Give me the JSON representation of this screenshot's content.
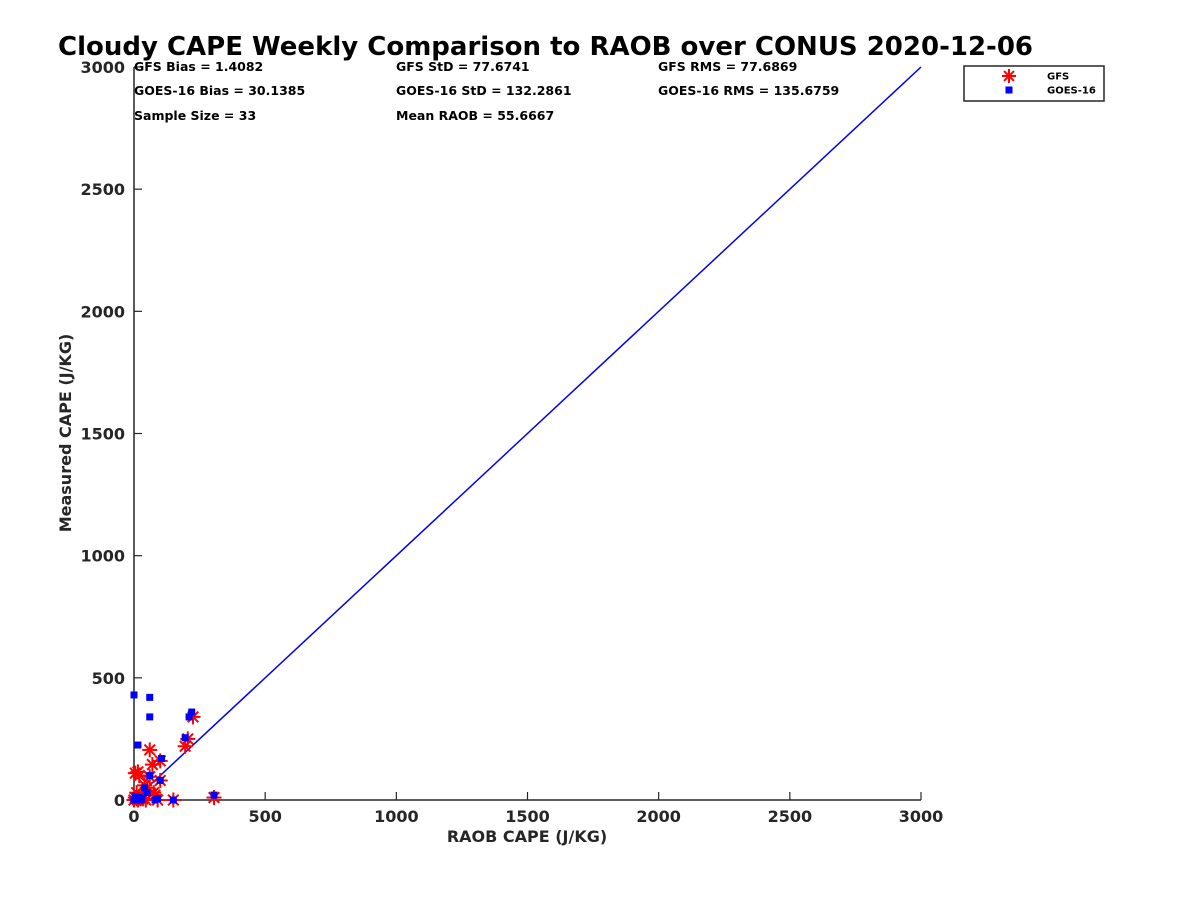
{
  "chart_data": {
    "type": "scatter",
    "title": "Cloudy CAPE Weekly Comparison to RAOB over CONUS 2020-12-06",
    "xlabel": "RAOB CAPE (J/KG)",
    "ylabel": "Measured CAPE (J/KG)",
    "xlim": [
      0,
      3000
    ],
    "ylim": [
      0,
      3000
    ],
    "xticks": [
      "0",
      "500",
      "1000",
      "1500",
      "2000",
      "2500",
      "3000"
    ],
    "yticks": [
      "0",
      "500",
      "1000",
      "1500",
      "2000",
      "2500",
      "3000"
    ],
    "grid": false,
    "legend_position": "top-right",
    "stats": [
      [
        "GFS Bias = 1.4082",
        "GFS StD = 77.6741",
        "GFS RMS = 77.6869"
      ],
      [
        "GOES-16 Bias = 30.1385",
        "GOES-16 StD = 132.2861",
        "GOES-16 RMS = 135.6759"
      ],
      [
        "Sample Size = 33",
        "Mean RAOB = 55.6667",
        ""
      ]
    ],
    "reference_line": {
      "x": [
        0,
        3000
      ],
      "y": [
        0,
        3000
      ],
      "color": "#0000ee"
    },
    "series": [
      {
        "name": "GFS",
        "marker": "star",
        "color": "#ff0000",
        "points": [
          [
            0,
            0
          ],
          [
            5,
            10
          ],
          [
            10,
            5
          ],
          [
            15,
            0
          ],
          [
            20,
            15
          ],
          [
            25,
            5
          ],
          [
            10,
            30
          ],
          [
            30,
            20
          ],
          [
            5,
            110
          ],
          [
            15,
            115
          ],
          [
            20,
            100
          ],
          [
            40,
            60
          ],
          [
            50,
            50
          ],
          [
            60,
            95
          ],
          [
            60,
            205
          ],
          [
            70,
            145
          ],
          [
            80,
            20
          ],
          [
            90,
            0
          ],
          [
            100,
            80
          ],
          [
            100,
            160
          ],
          [
            150,
            0
          ],
          [
            195,
            220
          ],
          [
            205,
            250
          ],
          [
            225,
            340
          ],
          [
            305,
            10
          ],
          [
            35,
            5
          ],
          [
            45,
            0
          ],
          [
            75,
            30
          ]
        ]
      },
      {
        "name": "GOES-16",
        "marker": "square",
        "color": "#0000ff",
        "points": [
          [
            0,
            430
          ],
          [
            15,
            225
          ],
          [
            60,
            420
          ],
          [
            60,
            340
          ],
          [
            0,
            0
          ],
          [
            10,
            0
          ],
          [
            20,
            10
          ],
          [
            30,
            5
          ],
          [
            40,
            50
          ],
          [
            50,
            30
          ],
          [
            60,
            100
          ],
          [
            80,
            0
          ],
          [
            90,
            5
          ],
          [
            100,
            80
          ],
          [
            105,
            170
          ],
          [
            150,
            0
          ],
          [
            195,
            255
          ],
          [
            210,
            340
          ],
          [
            220,
            360
          ],
          [
            305,
            20
          ],
          [
            5,
            15
          ],
          [
            25,
            0
          ]
        ]
      }
    ]
  },
  "legend": {
    "items": [
      {
        "label": "GFS",
        "marker": "star",
        "color": "#ff0000"
      },
      {
        "label": "GOES-16",
        "marker": "square",
        "color": "#0000ff"
      }
    ]
  }
}
